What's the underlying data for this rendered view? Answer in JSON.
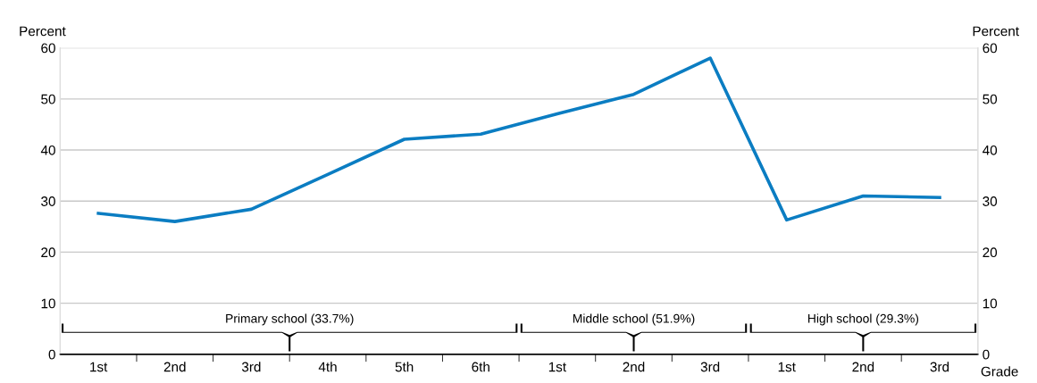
{
  "chart_data": {
    "type": "line",
    "ylabel": "Percent",
    "y2label": "Percent",
    "xlabel": "Grade",
    "categories": [
      "1st",
      "2nd",
      "3rd",
      "4th",
      "5th",
      "6th",
      "1st",
      "2nd",
      "3rd",
      "1st",
      "2nd",
      "3rd"
    ],
    "series": [
      {
        "color": "#0b7dc2",
        "values": [
          27.6,
          26.0,
          28.4,
          35.2,
          42.1,
          43.1,
          47.1,
          50.9,
          58.0,
          26.3,
          31.0,
          30.7
        ]
      }
    ],
    "ylim": [
      0,
      60
    ],
    "yticks": [
      0,
      10,
      20,
      30,
      40,
      50,
      60
    ],
    "y2lim": [
      0,
      60
    ],
    "y2ticks": [
      0,
      10,
      20,
      30,
      40,
      50,
      60
    ],
    "grid": "y",
    "legend": false,
    "marker": "none",
    "line_style": "solid",
    "annotations": [
      "Primary school (33.7%)",
      "Middle school (51.9%)",
      "High school (29.3%)"
    ]
  }
}
